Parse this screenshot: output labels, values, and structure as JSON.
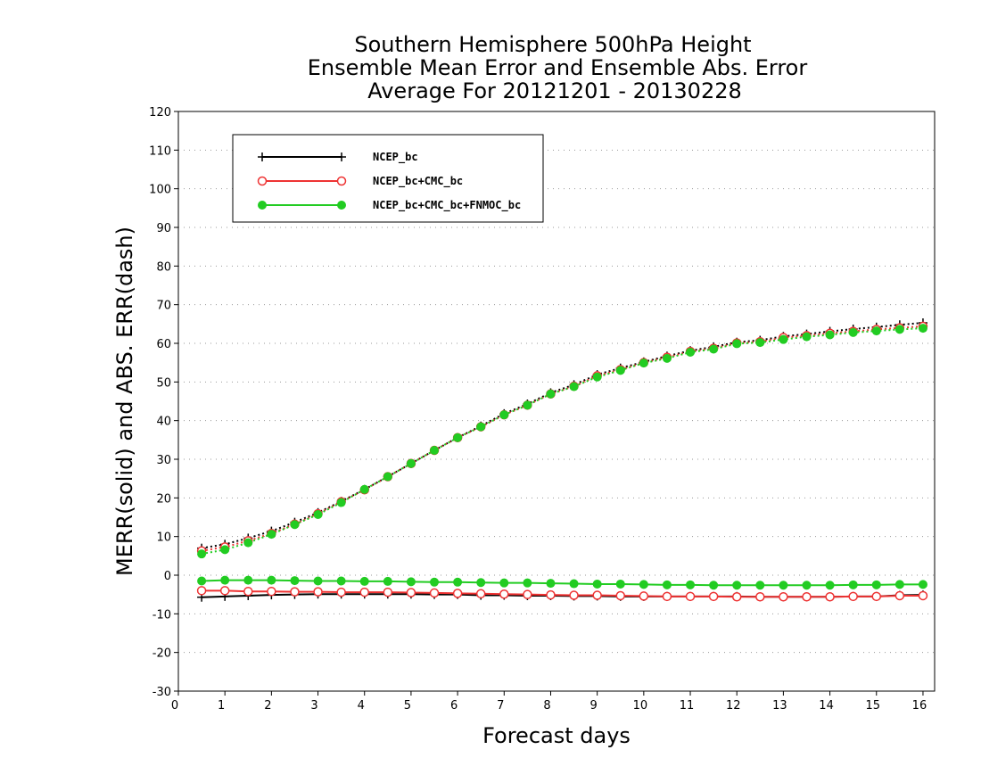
{
  "chart_data": {
    "type": "line",
    "title_lines": [
      "Southern Hemisphere 500hPa Height",
      "Ensemble Mean Error and Ensemble Abs. Error",
      "Average For 20121201 - 20130228"
    ],
    "xlabel": "Forecast days",
    "ylabel": "MERR(solid) and ABS. ERR(dash)",
    "xlim": [
      0,
      16.25
    ],
    "ylim": [
      -30,
      120
    ],
    "xticks": [
      0,
      1,
      2,
      3,
      4,
      5,
      6,
      7,
      8,
      9,
      10,
      11,
      12,
      13,
      14,
      15,
      16
    ],
    "yticks": [
      -30,
      -20,
      -10,
      0,
      10,
      20,
      30,
      40,
      50,
      60,
      70,
      80,
      90,
      100,
      110,
      120
    ],
    "grid": "horizontal dotted",
    "legend_position": "top-left",
    "x": [
      0.5,
      1,
      1.5,
      2,
      2.5,
      3,
      3.5,
      4,
      4.5,
      5,
      5.5,
      6,
      6.5,
      7,
      7.5,
      8,
      8.5,
      9,
      9.5,
      10,
      10.5,
      11,
      11.5,
      12,
      12.5,
      13,
      13.5,
      14,
      14.5,
      15,
      15.5,
      16
    ],
    "series": [
      {
        "name": "NCEP_bc",
        "color": "#000000",
        "marker": "plus",
        "merr": [
          -5.7,
          -5.5,
          -5.3,
          -5.1,
          -5.0,
          -4.9,
          -4.9,
          -4.9,
          -4.9,
          -4.9,
          -5.0,
          -5.0,
          -5.2,
          -5.2,
          -5.3,
          -5.3,
          -5.4,
          -5.4,
          -5.5,
          -5.5,
          -5.5,
          -5.5,
          -5.5,
          -5.5,
          -5.6,
          -5.6,
          -5.6,
          -5.6,
          -5.5,
          -5.5,
          -5.2,
          -5.1
        ],
        "abs_err": [
          7.0,
          8.0,
          9.6,
          11.4,
          13.7,
          16.2,
          19.1,
          22.2,
          25.5,
          28.9,
          32.3,
          35.6,
          38.6,
          41.8,
          44.3,
          47.2,
          49.3,
          51.9,
          53.6,
          55.2,
          56.7,
          58.1,
          59.1,
          60.3,
          60.8,
          61.8,
          62.4,
          63.1,
          63.7,
          64.2,
          64.8,
          65.3
        ]
      },
      {
        "name": "NCEP_bc+CMC_bc",
        "color": "#ee3333",
        "marker": "open-circle",
        "merr": [
          -4.0,
          -4.0,
          -4.2,
          -4.2,
          -4.3,
          -4.3,
          -4.4,
          -4.4,
          -4.4,
          -4.5,
          -4.6,
          -4.7,
          -4.8,
          -4.9,
          -5.0,
          -5.1,
          -5.2,
          -5.2,
          -5.3,
          -5.4,
          -5.5,
          -5.5,
          -5.5,
          -5.6,
          -5.6,
          -5.6,
          -5.6,
          -5.6,
          -5.5,
          -5.5,
          -5.3,
          -5.3
        ],
        "abs_err": [
          6.3,
          7.3,
          8.9,
          10.8,
          13.2,
          15.9,
          19.0,
          22.1,
          25.5,
          28.9,
          32.3,
          35.6,
          38.4,
          41.5,
          44.0,
          46.9,
          48.9,
          51.6,
          53.2,
          55.0,
          56.4,
          57.9,
          58.7,
          60.1,
          60.4,
          61.5,
          62.0,
          62.6,
          63.1,
          63.6,
          64.0,
          64.4
        ]
      },
      {
        "name": "NCEP_bc+CMC_bc+FNMOC_bc",
        "color": "#22cc22",
        "marker": "filled-circle",
        "merr": [
          -1.5,
          -1.3,
          -1.3,
          -1.3,
          -1.4,
          -1.5,
          -1.5,
          -1.6,
          -1.6,
          -1.7,
          -1.8,
          -1.8,
          -1.9,
          -2.0,
          -2.0,
          -2.1,
          -2.2,
          -2.3,
          -2.3,
          -2.4,
          -2.5,
          -2.5,
          -2.6,
          -2.6,
          -2.6,
          -2.6,
          -2.6,
          -2.6,
          -2.5,
          -2.5,
          -2.4,
          -2.4
        ],
        "abs_err": [
          5.5,
          6.6,
          8.4,
          10.6,
          13.1,
          15.7,
          18.8,
          22.2,
          25.5,
          28.9,
          32.3,
          35.6,
          38.4,
          41.5,
          44.0,
          46.9,
          48.8,
          51.3,
          53.0,
          54.9,
          56.1,
          57.7,
          58.5,
          59.9,
          60.2,
          61.0,
          61.7,
          62.2,
          62.8,
          63.2,
          63.6,
          63.9
        ]
      }
    ]
  }
}
